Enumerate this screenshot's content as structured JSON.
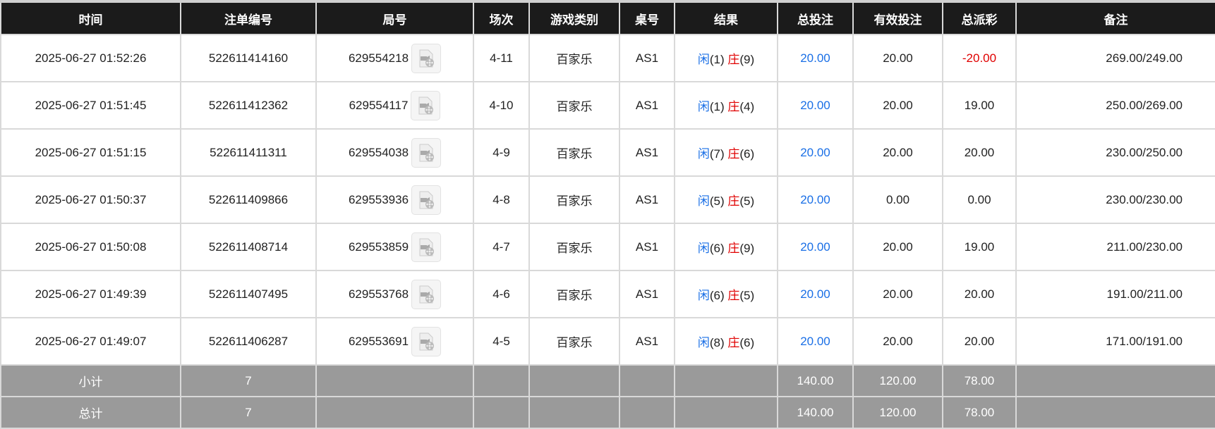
{
  "headers": [
    "时间",
    "注单编号",
    "局号",
    "场次",
    "游戏类别",
    "桌号",
    "结果",
    "总投注",
    "有效投注",
    "总派彩",
    "备注"
  ],
  "rows": [
    {
      "time": "2025-06-27 01:52:26",
      "bet_id": "522611414160",
      "round": "629554218",
      "session": "4-11",
      "game": "百家乐",
      "table": "AS1",
      "player": "闲",
      "player_score": "(1)",
      "banker": "庄",
      "banker_score": "(9)",
      "total_bet": "20.00",
      "valid_bet": "20.00",
      "payout": "-20.00",
      "payout_negative": true,
      "memo": "269.00/249.00"
    },
    {
      "time": "2025-06-27 01:51:45",
      "bet_id": "522611412362",
      "round": "629554117",
      "session": "4-10",
      "game": "百家乐",
      "table": "AS1",
      "player": "闲",
      "player_score": "(1)",
      "banker": "庄",
      "banker_score": "(4)",
      "total_bet": "20.00",
      "valid_bet": "20.00",
      "payout": "19.00",
      "payout_negative": false,
      "memo": "250.00/269.00"
    },
    {
      "time": "2025-06-27 01:51:15",
      "bet_id": "522611411311",
      "round": "629554038",
      "session": "4-9",
      "game": "百家乐",
      "table": "AS1",
      "player": "闲",
      "player_score": "(7)",
      "banker": "庄",
      "banker_score": "(6)",
      "total_bet": "20.00",
      "valid_bet": "20.00",
      "payout": "20.00",
      "payout_negative": false,
      "memo": "230.00/250.00"
    },
    {
      "time": "2025-06-27 01:50:37",
      "bet_id": "522611409866",
      "round": "629553936",
      "session": "4-8",
      "game": "百家乐",
      "table": "AS1",
      "player": "闲",
      "player_score": "(5)",
      "banker": "庄",
      "banker_score": "(5)",
      "total_bet": "20.00",
      "valid_bet": "0.00",
      "payout": "0.00",
      "payout_negative": false,
      "memo": "230.00/230.00"
    },
    {
      "time": "2025-06-27 01:50:08",
      "bet_id": "522611408714",
      "round": "629553859",
      "session": "4-7",
      "game": "百家乐",
      "table": "AS1",
      "player": "闲",
      "player_score": "(6)",
      "banker": "庄",
      "banker_score": "(9)",
      "total_bet": "20.00",
      "valid_bet": "20.00",
      "payout": "19.00",
      "payout_negative": false,
      "memo": "211.00/230.00"
    },
    {
      "time": "2025-06-27 01:49:39",
      "bet_id": "522611407495",
      "round": "629553768",
      "session": "4-6",
      "game": "百家乐",
      "table": "AS1",
      "player": "闲",
      "player_score": "(6)",
      "banker": "庄",
      "banker_score": "(5)",
      "total_bet": "20.00",
      "valid_bet": "20.00",
      "payout": "20.00",
      "payout_negative": false,
      "memo": "191.00/211.00"
    },
    {
      "time": "2025-06-27 01:49:07",
      "bet_id": "522611406287",
      "round": "629553691",
      "session": "4-5",
      "game": "百家乐",
      "table": "AS1",
      "player": "闲",
      "player_score": "(8)",
      "banker": "庄",
      "banker_score": "(6)",
      "total_bet": "20.00",
      "valid_bet": "20.00",
      "payout": "20.00",
      "payout_negative": false,
      "memo": "171.00/191.00"
    }
  ],
  "footer": [
    {
      "label": "小计",
      "count": "7",
      "total_bet": "140.00",
      "valid_bet": "120.00",
      "payout": "78.00"
    },
    {
      "label": "总计",
      "count": "7",
      "total_bet": "140.00",
      "valid_bet": "120.00",
      "payout": "78.00"
    }
  ],
  "icons": {
    "replay": "video-replay-icon"
  },
  "colors": {
    "header_bg": "#1b1b1b",
    "footer_bg": "#9a9a9a",
    "player": "#1a6fe6",
    "banker": "#e00000",
    "total_bet": "#1a6fe6",
    "negative": "#e00000"
  }
}
